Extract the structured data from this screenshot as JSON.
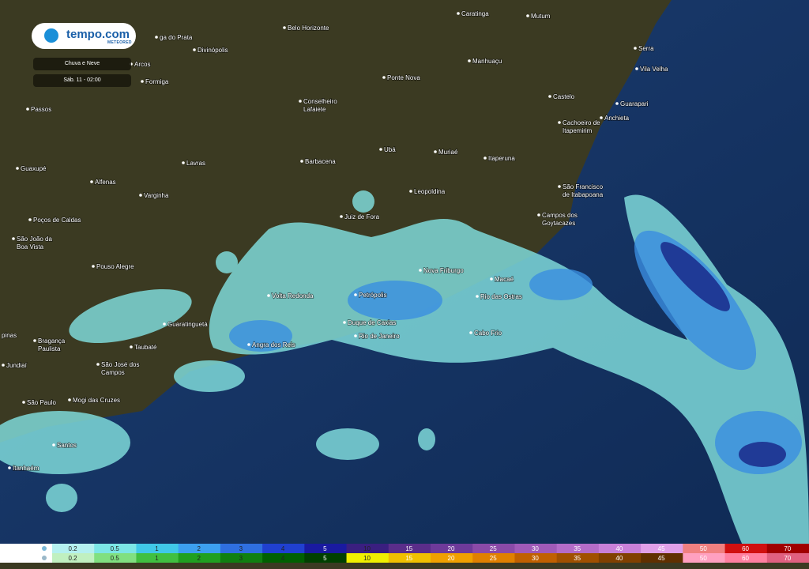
{
  "header": {
    "brand": "tempo.com",
    "brand_sub": "METEORED",
    "layer": "Chuva e Neve",
    "time": "Sáb. 11 - 02:00"
  },
  "cities": [
    {
      "lines": [
        "Caratinga"
      ]
    },
    {
      "lines": [
        "Mutum"
      ]
    },
    {
      "lines": [
        "Belo Horizonte"
      ]
    },
    {
      "lines": [
        "ga do Prata"
      ]
    },
    {
      "lines": [
        "Divinópolis"
      ]
    },
    {
      "lines": [
        "Arcos"
      ]
    },
    {
      "lines": [
        "Manhuaçu"
      ]
    },
    {
      "lines": [
        "Serra"
      ]
    },
    {
      "lines": [
        "Vila Velha"
      ]
    },
    {
      "lines": [
        "Formiga"
      ]
    },
    {
      "lines": [
        "Ponte Nova"
      ]
    },
    {
      "lines": [
        "Castelo"
      ]
    },
    {
      "lines": [
        "Guarapari"
      ]
    },
    {
      "lines": [
        "Passos"
      ]
    },
    {
      "lines": [
        "Conselheiro",
        "Lafaiete"
      ]
    },
    {
      "lines": [
        "Anchieta"
      ]
    },
    {
      "lines": [
        "Cachoeiro de",
        "Itapemirim"
      ]
    },
    {
      "lines": [
        "Ubá"
      ]
    },
    {
      "lines": [
        "Muriaé"
      ]
    },
    {
      "lines": [
        "Barbacena"
      ]
    },
    {
      "lines": [
        "Lavras"
      ]
    },
    {
      "lines": [
        "Itaperuna"
      ]
    },
    {
      "lines": [
        "Guaxupé"
      ]
    },
    {
      "lines": [
        "Alfenas"
      ]
    },
    {
      "lines": [
        "São Francisco",
        "de Itabapoana"
      ]
    },
    {
      "lines": [
        "Varginha"
      ]
    },
    {
      "lines": [
        "Leopoldina"
      ]
    },
    {
      "lines": [
        "Juiz de Fora"
      ]
    },
    {
      "lines": [
        "Poços de Caldas"
      ]
    },
    {
      "lines": [
        "Campos dos",
        "Goytacazes"
      ]
    },
    {
      "lines": [
        "São João da",
        "Boa Vista"
      ]
    },
    {
      "lines": [
        "Pouso Alegre"
      ]
    },
    {
      "lines": [
        "Nova Friburgo"
      ]
    },
    {
      "lines": [
        "Macaé"
      ]
    },
    {
      "lines": [
        "Volta Redonda"
      ]
    },
    {
      "lines": [
        "Petrópolis"
      ]
    },
    {
      "lines": [
        "Rio das Ostras"
      ]
    },
    {
      "lines": [
        "Guaratinguetá"
      ]
    },
    {
      "lines": [
        "Duque de Caxias"
      ]
    },
    {
      "lines": [
        "Cabo Frio"
      ]
    },
    {
      "lines": [
        "Rio de Janeiro"
      ]
    },
    {
      "lines": [
        "Angra dos Reis"
      ]
    },
    {
      "lines": [
        "Bragança",
        "Paulista"
      ]
    },
    {
      "lines": [
        "Taubaté"
      ]
    },
    {
      "lines": [
        "São José dos",
        "Campos"
      ]
    },
    {
      "lines": [
        "Jundiaí"
      ]
    },
    {
      "lines": [
        "pinas"
      ]
    },
    {
      "lines": [
        "São Paulo"
      ]
    },
    {
      "lines": [
        "Mogi das Cruzes"
      ]
    },
    {
      "lines": [
        "Santos"
      ]
    },
    {
      "lines": [
        "Itanhaém"
      ]
    }
  ],
  "legend": {
    "values": [
      0.2,
      0.5,
      1,
      2,
      3,
      4,
      5,
      10,
      15,
      20,
      25,
      30,
      35,
      40,
      45,
      50,
      60,
      70
    ],
    "rain_colors": [
      "#b4f0f0",
      "#7ce6e6",
      "#40c8e8",
      "#3ca0f0",
      "#2f6fe0",
      "#2040d0",
      "#1a1aa0",
      "#3a1f80",
      "#5a2d8a",
      "#6e3a9a",
      "#8a4aa8",
      "#a05ab8",
      "#b46cc8",
      "#c880d8",
      "#e0a0e8",
      "#f08080",
      "#d01010",
      "#a00000"
    ],
    "snow_colors": [
      "#c0f0c0",
      "#80e080",
      "#40c040",
      "#20a020",
      "#108010",
      "#006000",
      "#004000",
      "#f0f000",
      "#f0c000",
      "#f0a000",
      "#e08000",
      "#c06000",
      "#a05000",
      "#804000",
      "#603000",
      "#ffa0c0",
      "#ff80a0",
      "#e06080"
    ]
  }
}
